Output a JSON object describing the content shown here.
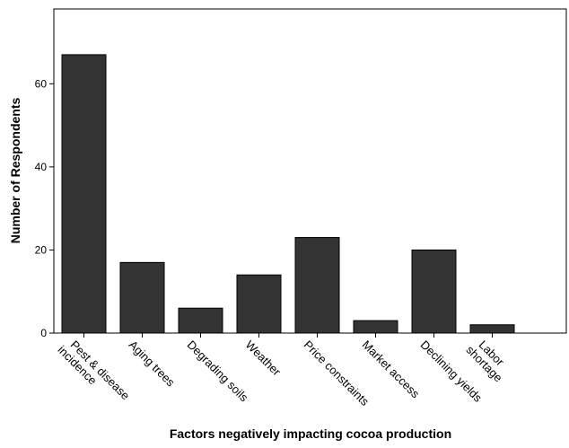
{
  "chart_data": {
    "type": "bar",
    "categories": [
      [
        "Pest & disease",
        "incidence"
      ],
      [
        "Aging trees"
      ],
      [
        "Degrading soils"
      ],
      [
        "Weather"
      ],
      [
        "Price constraints"
      ],
      [
        "Market access"
      ],
      [
        "Declining yields"
      ],
      [
        "Labor",
        "shortage"
      ]
    ],
    "values": [
      67,
      17,
      6,
      14,
      23,
      3,
      20,
      2
    ],
    "title": "",
    "xlabel": "Factors negatively impacting cocoa production",
    "ylabel": "Number of Respondents",
    "ylim": [
      0,
      78
    ],
    "yticks": [
      0,
      20,
      40,
      60
    ],
    "grid": false,
    "legend": "none",
    "bar_color": "#333333"
  }
}
